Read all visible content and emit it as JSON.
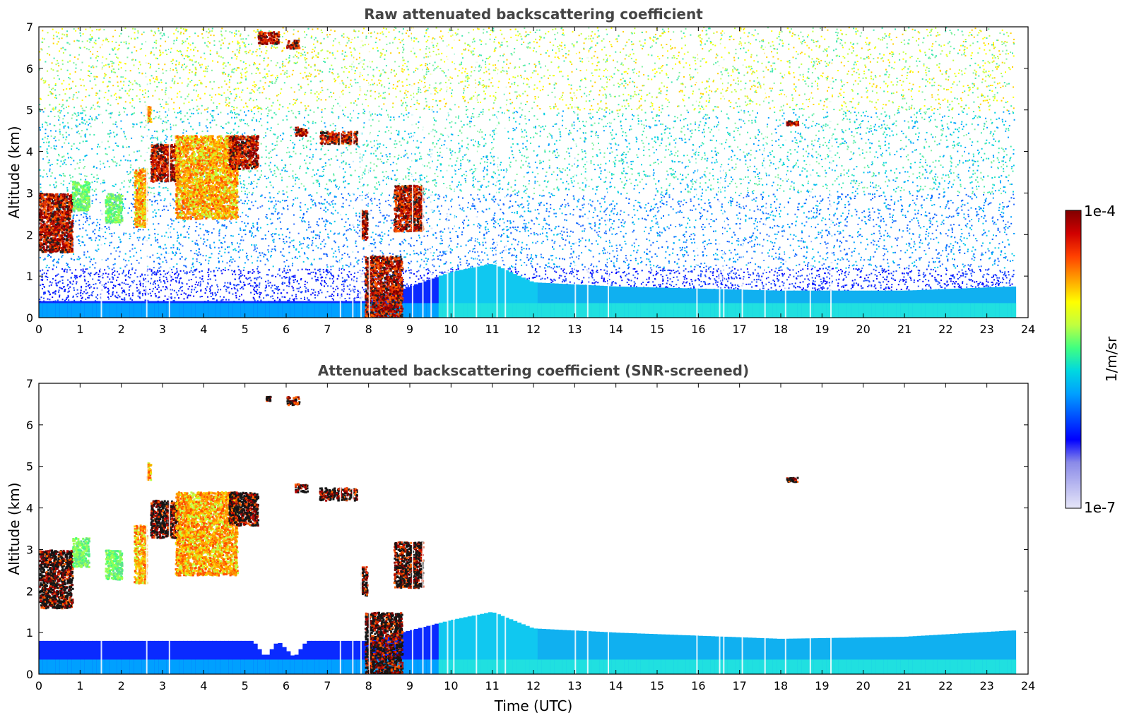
{
  "chart_data": [
    {
      "type": "heatmap",
      "title": "Raw attenuated backscattering coefficient",
      "xlabel": "",
      "ylabel": "Altitude (km)",
      "xlim": [
        0,
        24
      ],
      "ylim": [
        0,
        7
      ],
      "x_ticks": [
        "0",
        "1",
        "2",
        "3",
        "4",
        "5",
        "6",
        "7",
        "8",
        "9",
        "10",
        "11",
        "12",
        "13",
        "14",
        "15",
        "16",
        "17",
        "18",
        "19",
        "20",
        "21",
        "22",
        "23",
        "24"
      ],
      "y_ticks": [
        "0",
        "1",
        "2",
        "3",
        "4",
        "5",
        "6",
        "7"
      ],
      "data_end_hour": 23.65,
      "noise_level": "high",
      "boundary_layer_top_km": [
        {
          "t": 0,
          "h": 0.4
        },
        {
          "t": 8,
          "h": 0.4
        },
        {
          "t": 10,
          "h": 1.1
        },
        {
          "t": 11,
          "h": 1.3
        },
        {
          "t": 12,
          "h": 0.85
        },
        {
          "t": 14,
          "h": 0.75
        },
        {
          "t": 18,
          "h": 0.65
        },
        {
          "t": 21,
          "h": 0.65
        },
        {
          "t": 23.6,
          "h": 0.75
        }
      ],
      "cloud_layers": [
        {
          "t0": 0.0,
          "t1": 0.8,
          "h0": 1.6,
          "h1": 3.0,
          "level": "high"
        },
        {
          "t0": 0.8,
          "t1": 1.2,
          "h0": 2.6,
          "h1": 3.3,
          "level": "low"
        },
        {
          "t0": 1.6,
          "t1": 2.0,
          "h0": 2.3,
          "h1": 3.0,
          "level": "low"
        },
        {
          "t0": 2.3,
          "t1": 2.6,
          "h0": 2.2,
          "h1": 3.6,
          "level": "mid"
        },
        {
          "t0": 2.6,
          "t1": 2.7,
          "h0": 4.7,
          "h1": 5.1,
          "level": "mid"
        },
        {
          "t0": 2.7,
          "t1": 3.4,
          "h0": 3.3,
          "h1": 4.2,
          "level": "high"
        },
        {
          "t0": 3.3,
          "t1": 4.8,
          "h0": 2.4,
          "h1": 4.4,
          "level": "mid"
        },
        {
          "t0": 4.6,
          "t1": 5.3,
          "h0": 3.6,
          "h1": 4.4,
          "level": "high"
        },
        {
          "t0": 5.3,
          "t1": 5.8,
          "h0": 6.6,
          "h1": 6.9,
          "level": "high"
        },
        {
          "t0": 6.0,
          "t1": 6.3,
          "h0": 6.5,
          "h1": 6.7,
          "level": "high"
        },
        {
          "t0": 6.2,
          "t1": 6.5,
          "h0": 4.4,
          "h1": 4.6,
          "level": "high"
        },
        {
          "t0": 6.8,
          "t1": 7.7,
          "h0": 4.2,
          "h1": 4.5,
          "level": "high"
        },
        {
          "t0": 7.8,
          "t1": 7.95,
          "h0": 1.9,
          "h1": 2.6,
          "level": "high"
        },
        {
          "t0": 7.9,
          "t1": 8.8,
          "h0": 0.0,
          "h1": 1.5,
          "level": "high"
        },
        {
          "t0": 8.6,
          "t1": 9.3,
          "h0": 2.1,
          "h1": 3.2,
          "level": "high"
        },
        {
          "t0": 18.1,
          "t1": 18.4,
          "h0": 4.65,
          "h1": 4.75,
          "level": "high"
        }
      ]
    },
    {
      "type": "heatmap",
      "title": "Attenuated backscattering coefficient (SNR-screened)",
      "xlabel": "Time (UTC)",
      "ylabel": "Altitude (km)",
      "xlim": [
        0,
        24
      ],
      "ylim": [
        0,
        7
      ],
      "x_ticks": [
        "0",
        "1",
        "2",
        "3",
        "4",
        "5",
        "6",
        "7",
        "8",
        "9",
        "10",
        "11",
        "12",
        "13",
        "14",
        "15",
        "16",
        "17",
        "18",
        "19",
        "20",
        "21",
        "22",
        "23",
        "24"
      ],
      "y_ticks": [
        "0",
        "1",
        "2",
        "3",
        "4",
        "5",
        "6",
        "7"
      ],
      "data_end_hour": 23.65,
      "noise_level": "none",
      "boundary_layer_top_km": [
        {
          "t": 0,
          "h": 0.8
        },
        {
          "t": 5.2,
          "h": 0.8
        },
        {
          "t": 5.5,
          "h": 0.4
        },
        {
          "t": 5.8,
          "h": 0.8
        },
        {
          "t": 6.2,
          "h": 0.4
        },
        {
          "t": 6.5,
          "h": 0.8
        },
        {
          "t": 8,
          "h": 0.8
        },
        {
          "t": 10,
          "h": 1.3
        },
        {
          "t": 11,
          "h": 1.5
        },
        {
          "t": 12,
          "h": 1.1
        },
        {
          "t": 14,
          "h": 1.0
        },
        {
          "t": 18,
          "h": 0.85
        },
        {
          "t": 21,
          "h": 0.9
        },
        {
          "t": 23.6,
          "h": 1.05
        }
      ],
      "cloud_layers": [
        {
          "t0": 0.0,
          "t1": 0.8,
          "h0": 1.6,
          "h1": 3.0,
          "level": "high"
        },
        {
          "t0": 0.8,
          "t1": 1.2,
          "h0": 2.6,
          "h1": 3.3,
          "level": "low"
        },
        {
          "t0": 1.6,
          "t1": 2.0,
          "h0": 2.3,
          "h1": 3.0,
          "level": "low"
        },
        {
          "t0": 2.3,
          "t1": 2.6,
          "h0": 2.2,
          "h1": 3.6,
          "level": "mid"
        },
        {
          "t0": 2.6,
          "t1": 2.7,
          "h0": 4.7,
          "h1": 5.1,
          "level": "mid"
        },
        {
          "t0": 2.7,
          "t1": 3.4,
          "h0": 3.3,
          "h1": 4.2,
          "level": "high"
        },
        {
          "t0": 3.3,
          "t1": 4.8,
          "h0": 2.4,
          "h1": 4.4,
          "level": "mid"
        },
        {
          "t0": 4.6,
          "t1": 5.3,
          "h0": 3.6,
          "h1": 4.4,
          "level": "high"
        },
        {
          "t0": 5.5,
          "t1": 5.6,
          "h0": 6.6,
          "h1": 6.7,
          "level": "high"
        },
        {
          "t0": 6.0,
          "t1": 6.3,
          "h0": 6.5,
          "h1": 6.7,
          "level": "high"
        },
        {
          "t0": 6.2,
          "t1": 6.5,
          "h0": 4.4,
          "h1": 4.6,
          "level": "high"
        },
        {
          "t0": 6.8,
          "t1": 7.7,
          "h0": 4.2,
          "h1": 4.5,
          "level": "high"
        },
        {
          "t0": 7.8,
          "t1": 7.95,
          "h0": 1.9,
          "h1": 2.6,
          "level": "high"
        },
        {
          "t0": 7.9,
          "t1": 8.8,
          "h0": 0.0,
          "h1": 1.5,
          "level": "high"
        },
        {
          "t0": 8.6,
          "t1": 9.3,
          "h0": 2.1,
          "h1": 3.2,
          "level": "high"
        },
        {
          "t0": 18.1,
          "t1": 18.4,
          "h0": 4.65,
          "h1": 4.75,
          "level": "high"
        }
      ]
    }
  ],
  "colorbar": {
    "max_label": "1e-4",
    "min_label": "1e-7",
    "units_label": "1/m/sr",
    "colors": [
      "#e6e6f8",
      "#b8b8f0",
      "#8a8ae8",
      "#0000ff",
      "#0050ff",
      "#00a0ff",
      "#00d8e0",
      "#40ff80",
      "#c0ff40",
      "#ffff00",
      "#ffa000",
      "#ff4000",
      "#d00000",
      "#800000"
    ]
  }
}
